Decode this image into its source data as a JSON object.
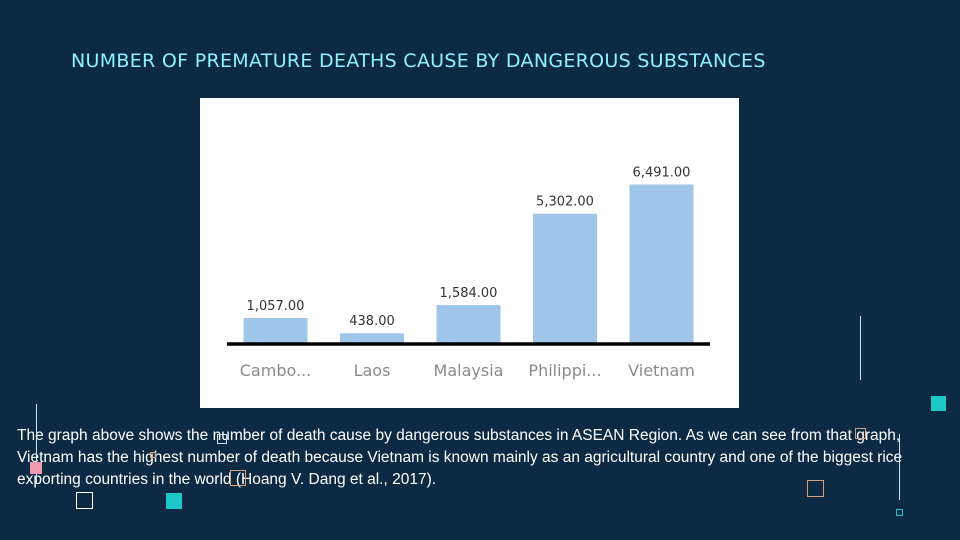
{
  "slide": {
    "title": "NUMBER OF PREMATURE DEATHS CAUSE BY DANGEROUS SUBSTANCES",
    "body": "The graph above shows the number of death cause by dangerous substances in ASEAN Region. As we can see from that graph, Vietnam has the highest number of death because Vietnam is known mainly as an agricultural country and one of the biggest rice exporting countries in the world (Hoang V. Dang et al., 2017)."
  },
  "colors": {
    "background": "#0c2a43",
    "title": "#8ff0ff",
    "bar": "#9fc5e8",
    "axis": "#000000",
    "accent_teal": "#1ec8c8",
    "accent_pink": "#f29bb0",
    "accent_orange": "#d9a07a"
  },
  "chart_data": {
    "type": "bar",
    "categories": [
      "Cambo...",
      "Laos",
      "Malaysia",
      "Philippi...",
      "Vietnam"
    ],
    "values": [
      1057,
      438,
      1584,
      5302,
      6491
    ],
    "value_labels": [
      "1,057.00",
      "438.00",
      "1,584.00",
      "5,302.00",
      "6,491.00"
    ],
    "title": "",
    "xlabel": "",
    "ylabel": "",
    "ylim": [
      0,
      7000
    ],
    "grid": false,
    "legend": "none"
  }
}
